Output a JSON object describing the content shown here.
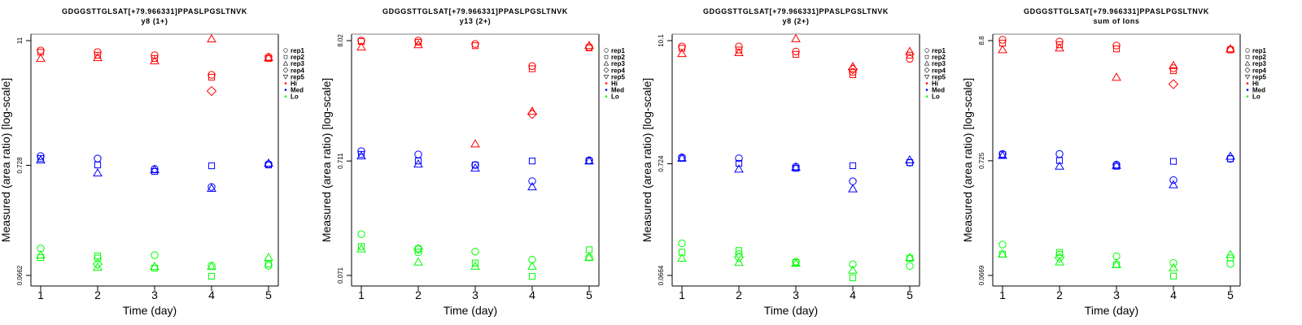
{
  "colors": {
    "Hi": "#ff0000",
    "Med": "#0000ff",
    "Lo": "#00ff00",
    "axis": "#000000",
    "box": "#808080"
  },
  "chart_data": [
    {
      "type": "scatter",
      "title": "GDGGSTTGLSAT[+79.966331]PPASLPGSLTNVK",
      "subtitle": "y8 (1+)",
      "xlabel": "Time (day)",
      "ylabel": "Measured (area ratio) [log-scale]",
      "yscale": "log",
      "x_ticks": [
        "1",
        "2",
        "3",
        "4",
        "5"
      ],
      "y_ticks": [
        "11",
        "0.728",
        "0.0662"
      ],
      "y_tick_values": [
        11,
        0.728,
        0.0662
      ],
      "xlim": [
        0.83,
        5.17
      ],
      "legend": {
        "position": "right",
        "entries": [
          {
            "label": "rep1",
            "symbol": "circle"
          },
          {
            "label": "rep2",
            "symbol": "square"
          },
          {
            "label": "rep3",
            "symbol": "triangle-up"
          },
          {
            "label": "rep4",
            "symbol": "diamond"
          },
          {
            "label": "rep5",
            "symbol": "triangle-down"
          },
          {
            "label": "Hi",
            "symbol": "dot",
            "color": "#ff0000"
          },
          {
            "label": "Med",
            "symbol": "dot",
            "color": "#0000ff"
          },
          {
            "label": "Lo",
            "symbol": "dot",
            "color": "#00ff00"
          }
        ]
      },
      "series": [
        {
          "level": "Hi",
          "rep": "rep1",
          "x": [
            1,
            2,
            3,
            4,
            5
          ],
          "y": [
            8.89,
            8.57,
            8.0,
            5.22,
            7.71
          ]
        },
        {
          "level": "Hi",
          "rep": "rep2",
          "x": [
            1,
            2,
            3,
            4,
            5
          ],
          "y": [
            8.57,
            8.0,
            7.45,
            4.96,
            7.45
          ]
        },
        {
          "level": "Hi",
          "rep": "rep3",
          "x": [
            1,
            2,
            3,
            4,
            5
          ],
          "y": [
            7.45,
            7.59,
            7.06,
            11.4,
            7.59
          ]
        },
        {
          "level": "Hi",
          "rep": "rep4",
          "x": [
            4
          ],
          "y": [
            3.67
          ]
        },
        {
          "level": "Med",
          "rep": "rep1",
          "x": [
            1,
            2,
            3,
            4,
            5
          ],
          "y": [
            0.891,
            0.845,
            0.672,
            0.455,
            0.747
          ]
        },
        {
          "level": "Med",
          "rep": "rep2",
          "x": [
            1,
            2,
            3,
            4,
            5
          ],
          "y": [
            0.845,
            0.734,
            0.637,
            0.721,
            0.734
          ]
        },
        {
          "level": "Med",
          "rep": "rep3",
          "x": [
            1,
            2,
            3,
            4,
            5
          ],
          "y": [
            0.816,
            0.615,
            0.66,
            0.44,
            0.76
          ]
        },
        {
          "level": "Lo",
          "rep": "rep1",
          "x": [
            1,
            2,
            3,
            4,
            5
          ],
          "y": [
            0.119,
            0.0959,
            0.103,
            0.0818,
            0.0818
          ]
        },
        {
          "level": "Lo",
          "rep": "rep2",
          "x": [
            1,
            2,
            3,
            4,
            5
          ],
          "y": [
            0.0977,
            0.101,
            0.0776,
            0.065,
            0.0848
          ]
        },
        {
          "level": "Lo",
          "rep": "rep3",
          "x": [
            1,
            2,
            3,
            4,
            5
          ],
          "y": [
            0.103,
            0.0791,
            0.0804,
            0.0804,
            0.0977
          ]
        },
        {
          "level": "Lo",
          "rep": "rep4",
          "x": [
            2
          ],
          "y": [
            0.0848
          ]
        }
      ]
    },
    {
      "type": "scatter",
      "title": "GDGGSTTGLSAT[+79.966331]PPASLPGSLTNVK",
      "subtitle": "y13 (2+)",
      "xlabel": "Time (day)",
      "ylabel": "Measured (area ratio) [log-scale]",
      "yscale": "log",
      "x_ticks": [
        "1",
        "2",
        "3",
        "4",
        "5"
      ],
      "y_ticks": [
        "8.02",
        "0.711",
        "0.071"
      ],
      "y_tick_values": [
        8.02,
        0.711,
        0.071
      ],
      "xlim": [
        0.83,
        5.17
      ],
      "legend": {
        "position": "right",
        "entries": [
          {
            "label": "rep1",
            "symbol": "circle"
          },
          {
            "label": "rep2",
            "symbol": "square"
          },
          {
            "label": "rep3",
            "symbol": "triangle-up"
          },
          {
            "label": "rep4",
            "symbol": "diamond"
          },
          {
            "label": "rep5",
            "symbol": "triangle-down"
          },
          {
            "label": "Hi",
            "symbol": "dot",
            "color": "#ff0000"
          },
          {
            "label": "Med",
            "symbol": "dot",
            "color": "#0000ff"
          },
          {
            "label": "Lo",
            "symbol": "dot",
            "color": "#00ff00"
          }
        ]
      },
      "series": [
        {
          "level": "Hi",
          "rep": "rep1",
          "x": [
            1,
            2,
            3,
            4,
            5
          ],
          "y": [
            8.02,
            8.02,
            7.5,
            4.8,
            7.04
          ]
        },
        {
          "level": "Hi",
          "rep": "rep2",
          "x": [
            1,
            2,
            3,
            4,
            5
          ],
          "y": [
            7.89,
            7.76,
            7.25,
            4.55,
            6.93
          ]
        },
        {
          "level": "Hi",
          "rep": "rep3",
          "x": [
            1,
            2,
            3,
            4,
            5
          ],
          "y": [
            7.04,
            7.37,
            1.0,
            1.93,
            7.25
          ]
        },
        {
          "level": "Hi",
          "rep": "rep4",
          "x": [
            4
          ],
          "y": [
            1.83
          ]
        },
        {
          "level": "Med",
          "rep": "rep1",
          "x": [
            1,
            2,
            3,
            4,
            5
          ],
          "y": [
            0.866,
            0.812,
            0.656,
            0.474,
            0.722
          ]
        },
        {
          "level": "Med",
          "rep": "rep2",
          "x": [
            1,
            2,
            3,
            4,
            5
          ],
          "y": [
            0.812,
            0.711,
            0.656,
            0.711,
            0.711
          ]
        },
        {
          "level": "Med",
          "rep": "rep3",
          "x": [
            1,
            2,
            3,
            4,
            5
          ],
          "y": [
            0.786,
            0.667,
            0.615,
            0.422,
            0.711
          ]
        },
        {
          "level": "Lo",
          "rep": "rep1",
          "x": [
            1,
            2,
            3,
            4,
            5
          ],
          "y": [
            0.163,
            0.113,
            0.115,
            0.0976,
            0.102
          ]
        },
        {
          "level": "Lo",
          "rep": "rep2",
          "x": [
            1,
            2,
            3,
            4,
            5
          ],
          "y": [
            0.127,
            0.121,
            0.0912,
            0.0697,
            0.119
          ]
        },
        {
          "level": "Lo",
          "rep": "rep3",
          "x": [
            1,
            2,
            3,
            4,
            5
          ],
          "y": [
            0.121,
            0.0927,
            0.0853,
            0.0853,
            0.102
          ]
        },
        {
          "level": "Lo",
          "rep": "rep4",
          "x": [
            2
          ],
          "y": [
            0.121
          ]
        }
      ]
    },
    {
      "type": "scatter",
      "title": "GDGGSTTGLSAT[+79.966331]PPASLPGSLTNVK",
      "subtitle": "y8 (2+)",
      "xlabel": "Time (day)",
      "ylabel": "Measured (area ratio) [log-scale]",
      "yscale": "log",
      "x_ticks": [
        "1",
        "2",
        "3",
        "4",
        "5"
      ],
      "y_ticks": [
        "10.1",
        "0.724",
        "0.0664"
      ],
      "y_tick_values": [
        10.1,
        0.724,
        0.0664
      ],
      "xlim": [
        0.83,
        5.17
      ],
      "legend": {
        "position": "right",
        "entries": [
          {
            "label": "rep1",
            "symbol": "circle"
          },
          {
            "label": "rep2",
            "symbol": "square"
          },
          {
            "label": "rep3",
            "symbol": "triangle-up"
          },
          {
            "label": "rep4",
            "symbol": "diamond"
          },
          {
            "label": "rep5",
            "symbol": "triangle-down"
          },
          {
            "label": "Hi",
            "symbol": "dot",
            "color": "#ff0000"
          },
          {
            "label": "Med",
            "symbol": "dot",
            "color": "#0000ff"
          },
          {
            "label": "Lo",
            "symbol": "dot",
            "color": "#00ff00"
          }
        ]
      },
      "series": [
        {
          "level": "Hi",
          "rep": "rep1",
          "x": [
            1,
            2,
            3,
            4,
            5
          ],
          "y": [
            8.92,
            8.92,
            8.0,
            5.16,
            6.84
          ]
        },
        {
          "level": "Hi",
          "rep": "rep2",
          "x": [
            1,
            2,
            3,
            4,
            5
          ],
          "y": [
            8.58,
            8.26,
            7.52,
            4.87,
            7.39
          ]
        },
        {
          "level": "Hi",
          "rep": "rep3",
          "x": [
            1,
            2,
            3,
            4,
            5
          ],
          "y": [
            7.65,
            7.79,
            10.5,
            5.78,
            8.0
          ]
        },
        {
          "level": "Hi",
          "rep": "rep4",
          "x": [
            4
          ],
          "y": [
            5.46
          ]
        },
        {
          "level": "Med",
          "rep": "rep1",
          "x": [
            1,
            2,
            3,
            4,
            5
          ],
          "y": [
            0.83,
            0.815,
            0.682,
            0.498,
            0.742
          ]
        },
        {
          "level": "Med",
          "rep": "rep2",
          "x": [
            1,
            2,
            3,
            4,
            5
          ],
          "y": [
            0.815,
            0.731,
            0.657,
            0.695,
            0.742
          ]
        },
        {
          "level": "Med",
          "rep": "rep3",
          "x": [
            1,
            2,
            3,
            4,
            5
          ],
          "y": [
            0.815,
            0.645,
            0.67,
            0.423,
            0.785
          ]
        },
        {
          "level": "Lo",
          "rep": "rep1",
          "x": [
            1,
            2,
            3,
            4,
            5
          ],
          "y": [
            0.132,
            0.105,
            0.0891,
            0.0843,
            0.0813
          ]
        },
        {
          "level": "Lo",
          "rep": "rep2",
          "x": [
            1,
            2,
            3,
            4,
            5
          ],
          "y": [
            0.109,
            0.113,
            0.0875,
            0.0632,
            0.0959
          ]
        },
        {
          "level": "Lo",
          "rep": "rep3",
          "x": [
            1,
            2,
            3,
            4,
            5
          ],
          "y": [
            0.0959,
            0.0875,
            0.0859,
            0.0742,
            0.0976
          ]
        },
        {
          "level": "Lo",
          "rep": "rep4",
          "x": [
            2
          ],
          "y": [
            0.0976
          ]
        }
      ]
    },
    {
      "type": "scatter",
      "title": "GDGGSTTGLSAT[+79.966331]PPASLPGSLTNVK",
      "subtitle": "sum of Ions",
      "xlabel": "Time (day)",
      "ylabel": "Measured (area ratio) [log-scale]",
      "yscale": "log",
      "x_ticks": [
        "1",
        "2",
        "3",
        "4",
        "5"
      ],
      "y_ticks": [
        "8.8",
        "0.725",
        "0.0669"
      ],
      "y_tick_values": [
        8.8,
        0.725,
        0.0669
      ],
      "xlim": [
        0.83,
        5.17
      ],
      "legend": {
        "position": "right",
        "entries": [
          {
            "label": "rep1",
            "symbol": "circle"
          },
          {
            "label": "rep2",
            "symbol": "square"
          },
          {
            "label": "rep3",
            "symbol": "triangle-up"
          },
          {
            "label": "rep4",
            "symbol": "diamond"
          },
          {
            "label": "rep5",
            "symbol": "triangle-down"
          },
          {
            "label": "Hi",
            "symbol": "dot",
            "color": "#ff0000"
          },
          {
            "label": "Med",
            "symbol": "dot",
            "color": "#0000ff"
          },
          {
            "label": "Lo",
            "symbol": "dot",
            "color": "#00ff00"
          }
        ]
      },
      "series": [
        {
          "level": "Hi",
          "rep": "rep1",
          "x": [
            1,
            2,
            3,
            4,
            5
          ],
          "y": [
            8.95,
            8.65,
            7.94,
            4.96,
            7.28
          ]
        },
        {
          "level": "Hi",
          "rep": "rep2",
          "x": [
            1,
            2,
            3,
            4,
            5
          ],
          "y": [
            8.36,
            8.07,
            7.41,
            4.71,
            7.28
          ]
        },
        {
          "level": "Hi",
          "rep": "rep3",
          "x": [
            1,
            2,
            3,
            4,
            5
          ],
          "y": [
            7.28,
            7.54,
            4.1,
            5.24,
            7.41
          ]
        },
        {
          "level": "Hi",
          "rep": "rep4",
          "x": [
            4
          ],
          "y": [
            3.56
          ]
        },
        {
          "level": "Med",
          "rep": "rep1",
          "x": [
            1,
            2,
            3,
            4,
            5
          ],
          "y": [
            0.835,
            0.835,
            0.669,
            0.485,
            0.756
          ]
        },
        {
          "level": "Med",
          "rep": "rep2",
          "x": [
            1,
            2,
            3,
            4,
            5
          ],
          "y": [
            0.822,
            0.728,
            0.647,
            0.716,
            0.756
          ]
        },
        {
          "level": "Med",
          "rep": "rep3",
          "x": [
            1,
            2,
            3,
            4,
            5
          ],
          "y": [
            0.808,
            0.647,
            0.658,
            0.439,
            0.795
          ]
        },
        {
          "level": "Lo",
          "rep": "rep1",
          "x": [
            1,
            2,
            3,
            4,
            5
          ],
          "y": [
            0.127,
            0.103,
            0.0996,
            0.0866,
            0.0851
          ]
        },
        {
          "level": "Lo",
          "rep": "rep2",
          "x": [
            1,
            2,
            3,
            4,
            5
          ],
          "y": [
            0.104,
            0.108,
            0.0837,
            0.066,
            0.0963
          ]
        },
        {
          "level": "Lo",
          "rep": "rep3",
          "x": [
            1,
            2,
            3,
            4,
            5
          ],
          "y": [
            0.104,
            0.0884,
            0.0837,
            0.0784,
            0.103
          ]
        },
        {
          "level": "Lo",
          "rep": "rep4",
          "x": [
            2
          ],
          "y": [
            0.0963
          ]
        }
      ]
    }
  ]
}
